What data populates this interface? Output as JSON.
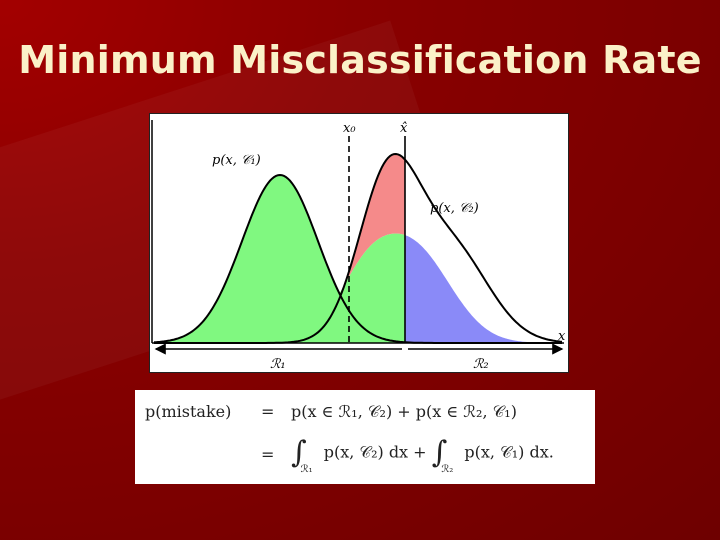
{
  "slide": {
    "title": "Minimum Misclassification Rate"
  },
  "figure": {
    "labels": {
      "x0": "x₀",
      "xhat": "x̂",
      "x_axis": "x",
      "p_c1": "p(x, 𝒞₁)",
      "p_c2": "p(x, 𝒞₂)",
      "region1": "ℛ₁",
      "region2": "ℛ₂"
    },
    "colors": {
      "red_region": "#f58a8a",
      "green_region": "#80f880",
      "blue_region": "#8a8af8"
    }
  },
  "equation": {
    "lhs": "p(mistake)",
    "eq": "=",
    "rhs_line1": "p(x ∈ ℛ₁, 𝒞₂) + p(x ∈ ℛ₂, 𝒞₁)",
    "integrand1": "p(x, 𝒞₂) dx +",
    "integrand2": "p(x, 𝒞₁) dx.",
    "sub1": "ℛ₁",
    "sub2": "ℛ₂",
    "integral_sign": "∫"
  }
}
